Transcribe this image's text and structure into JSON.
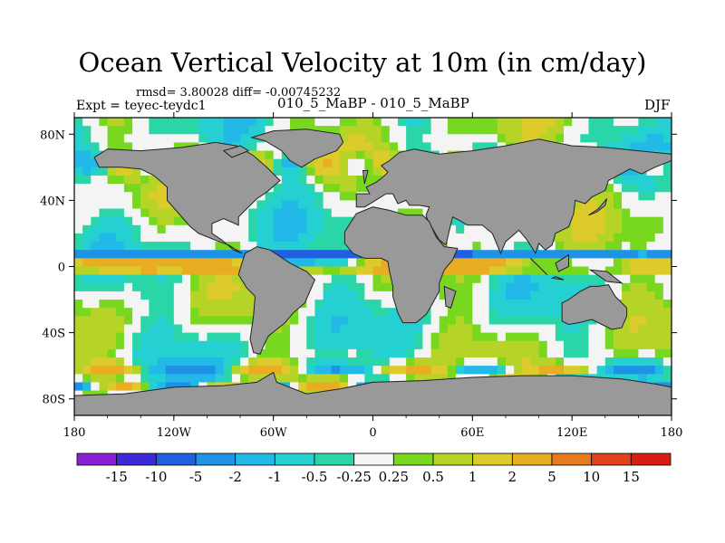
{
  "chart_data": {
    "type": "heatmap",
    "title": "Ocean Vertical Velocity at 10m (in cm/day)",
    "stats": "rmsd= 3.80028 diff= -0.00745232",
    "left_label": "Expt = teyec-teydc1",
    "center_label": "010_5_MaBP - 010_5_MaBP",
    "right_label": "DJF",
    "x_axis": {
      "range": [
        -180,
        180
      ],
      "ticks": [
        -180,
        -120,
        -60,
        0,
        60,
        120,
        180
      ],
      "tick_labels": [
        "180",
        "120W",
        "60W",
        "0",
        "60E",
        "120E",
        "180"
      ]
    },
    "y_axis": {
      "range": [
        -90,
        90
      ],
      "ticks": [
        80,
        40,
        0,
        -40,
        -80
      ],
      "tick_labels": [
        "80N",
        "40N",
        "0",
        "40S",
        "80S"
      ]
    },
    "colorbar": {
      "levels": [
        "-15",
        "-10",
        "-5",
        "-2",
        "-1",
        "-0.5",
        "-0.25",
        "0.25",
        "0.5",
        "1",
        "2",
        "5",
        "10",
        "15"
      ],
      "colors": [
        "#8a1fd6",
        "#3d2ad6",
        "#1f5fe0",
        "#1e93e6",
        "#22b8e8",
        "#24d0d2",
        "#2ad6a8",
        "#f4f4f4",
        "#78d820",
        "#b6d428",
        "#dccb2a",
        "#e8ad22",
        "#e67a1c",
        "#e0401a",
        "#d81e14"
      ]
    },
    "land_color": "#999999"
  }
}
